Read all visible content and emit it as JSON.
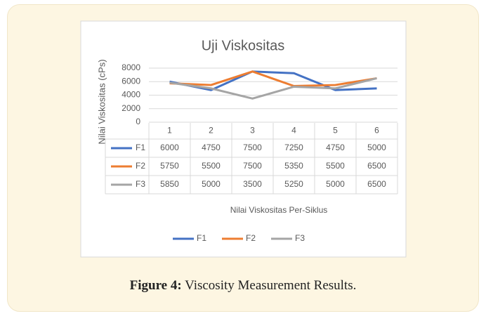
{
  "chart_data": {
    "type": "line",
    "title": "Uji Viskositas",
    "ylabel": "Nilai Viskositas (cPs)",
    "xlabel": "Nilai Viskositas Per-Siklus",
    "categories": [
      "1",
      "2",
      "3",
      "4",
      "5",
      "6"
    ],
    "series": [
      {
        "name": "F1",
        "color": "#4472c4",
        "values": [
          6000,
          4750,
          7500,
          7250,
          4750,
          5000
        ]
      },
      {
        "name": "F2",
        "color": "#ed7d31",
        "values": [
          5750,
          5500,
          7500,
          5350,
          5500,
          6500
        ]
      },
      {
        "name": "F3",
        "color": "#a5a5a5",
        "values": [
          5850,
          5000,
          3500,
          5250,
          5000,
          6500
        ]
      }
    ],
    "ylim": [
      0,
      8000
    ],
    "yticks": [
      0,
      2000,
      4000,
      6000,
      8000
    ],
    "grid": true,
    "data_table": true,
    "legend": "bottom"
  },
  "caption": {
    "label": "Figure 4:",
    "text": "Viscosity Measurement Results."
  }
}
